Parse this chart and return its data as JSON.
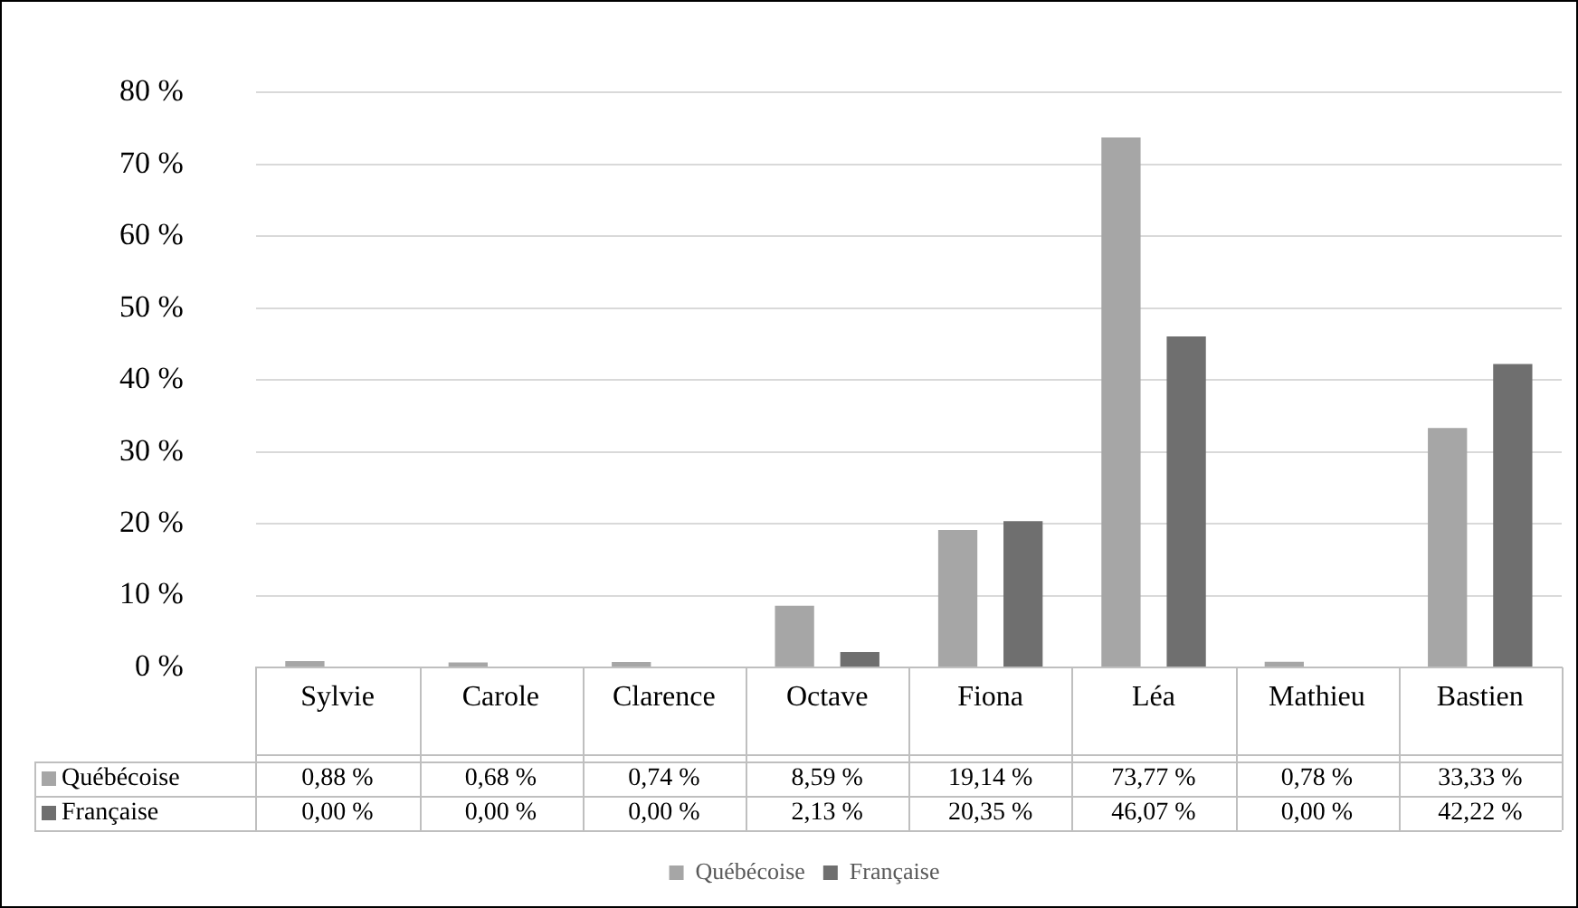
{
  "chart_data": {
    "type": "bar",
    "categories": [
      "Sylvie",
      "Carole",
      "Clarence",
      "Octave",
      "Fiona",
      "Léa",
      "Mathieu",
      "Bastien"
    ],
    "series": [
      {
        "name": "Québécoise",
        "color": "#a6a6a6",
        "values": [
          0.88,
          0.68,
          0.74,
          8.59,
          19.14,
          73.77,
          0.78,
          33.33
        ],
        "value_labels": [
          "0,88 %",
          "0,68 %",
          "0,74 %",
          "8,59 %",
          "19,14 %",
          "73,77 %",
          "0,78 %",
          "33,33 %"
        ]
      },
      {
        "name": "Française",
        "color": "#6f6f6f",
        "values": [
          0,
          0,
          0,
          2.13,
          20.35,
          46.07,
          0,
          42.22
        ],
        "value_labels": [
          "0,00 %",
          "0,00 %",
          "0,00 %",
          "2,13 %",
          "20,35 %",
          "46,07 %",
          "0,00 %",
          "42,22 %"
        ]
      }
    ],
    "ylim": [
      0,
      80
    ],
    "yticks": [
      {
        "value": 0,
        "label": "0 %"
      },
      {
        "value": 10,
        "label": "10 %"
      },
      {
        "value": 20,
        "label": "20 %"
      },
      {
        "value": 30,
        "label": "30 %"
      },
      {
        "value": 40,
        "label": "40 %"
      },
      {
        "value": 50,
        "label": "50 %"
      },
      {
        "value": 60,
        "label": "60 %"
      },
      {
        "value": 70,
        "label": "70 %"
      },
      {
        "value": 80,
        "label": "80 %"
      }
    ],
    "grid": "y",
    "legend": "bottom"
  }
}
